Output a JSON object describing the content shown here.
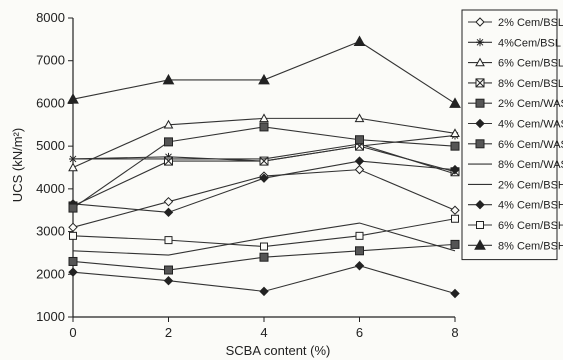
{
  "chart_data": {
    "type": "line",
    "xlabel": "SCBA content (%)",
    "ylabel": "UCS (kN/m²)",
    "ylim": [
      1000,
      8000
    ],
    "xlim": [
      0,
      8
    ],
    "x": [
      0,
      2,
      4,
      6,
      8
    ],
    "x_ticks": [
      "0",
      "2",
      "4",
      "6",
      "8"
    ],
    "y_ticks": [
      "1000",
      "2000",
      "3000",
      "4000",
      "5000",
      "6000",
      "7000",
      "8000"
    ],
    "grid": false,
    "legend_position": "right",
    "series": [
      {
        "name": "2% Cem/BSL",
        "marker": "diamond-open",
        "values": [
          3100,
          3700,
          4300,
          4450,
          3500
        ]
      },
      {
        "name": "4%Cem/BSL",
        "marker": "asterisk",
        "values": [
          4700,
          4750,
          4650,
          5000,
          5250
        ]
      },
      {
        "name": "6% Cem/BSL",
        "marker": "triangle-open",
        "values": [
          4500,
          5500,
          5650,
          5650,
          5300
        ]
      },
      {
        "name": "8% Cem/BSL",
        "marker": "square-x",
        "values": [
          3600,
          4650,
          4650,
          5000,
          4400
        ]
      },
      {
        "name": "2% Cem/WAS",
        "marker": "square-filled",
        "values": [
          2300,
          2100,
          2400,
          2550,
          2700
        ]
      },
      {
        "name": "4% Cem/WAS",
        "marker": "diamond-filled",
        "values": [
          3650,
          3450,
          4250,
          4650,
          4450
        ]
      },
      {
        "name": "6% Cem/WAS",
        "marker": "square-filled",
        "values": [
          3550,
          5100,
          5450,
          5150,
          5000
        ]
      },
      {
        "name": "8% Cem/WAS",
        "marker": "none",
        "values": [
          4700,
          4700,
          4700,
          5050,
          4350
        ]
      },
      {
        "name": "2% Cem/BSH",
        "marker": "none",
        "values": [
          2550,
          2450,
          2850,
          3200,
          2550
        ]
      },
      {
        "name": "4% Cem/BSH",
        "marker": "diamond-filled",
        "values": [
          2050,
          1850,
          1600,
          2200,
          1550
        ]
      },
      {
        "name": "6% Cem/BSH",
        "marker": "square-open",
        "values": [
          2900,
          2800,
          2650,
          2900,
          3300
        ]
      },
      {
        "name": "8% Cem/BSH",
        "marker": "triangle-filled",
        "values": [
          6100,
          6550,
          6550,
          7450,
          6000
        ]
      }
    ]
  }
}
